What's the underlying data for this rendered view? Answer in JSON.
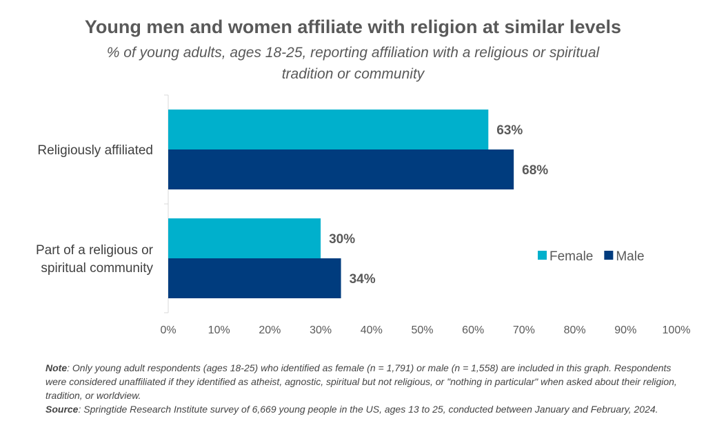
{
  "chart_data": {
    "type": "bar",
    "orientation": "horizontal",
    "title": "Young men and women affiliate with religion at similar levels",
    "subtitle": "% of young adults, ages 18-25, reporting affiliation with a religious or spiritual tradition or community",
    "categories": [
      [
        "Religiously affiliated"
      ],
      [
        "Part of a religious or",
        "spiritual community"
      ]
    ],
    "series": [
      {
        "name": "Female",
        "color": "#00B0CC",
        "values": [
          63,
          30
        ],
        "labels": [
          "63%",
          "30%"
        ]
      },
      {
        "name": "Male",
        "color": "#003C7E",
        "values": [
          68,
          34
        ],
        "labels": [
          "68%",
          "34%"
        ]
      }
    ],
    "xlim": [
      0,
      100
    ],
    "x_ticks": [
      0,
      10,
      20,
      30,
      40,
      50,
      60,
      70,
      80,
      90,
      100
    ],
    "x_tick_labels": [
      "0%",
      "10%",
      "20%",
      "30%",
      "40%",
      "50%",
      "60%",
      "70%",
      "80%",
      "90%",
      "100%"
    ],
    "grid": false,
    "legend_position": "right"
  },
  "notes": {
    "note_label": "Note",
    "note_text": ": Only young adult respondents (ages 18-25) who identified as female (n = 1,791) or male (n = 1,558) are included in this graph. Respondents were considered unaffiliated if they identified as atheist, agnostic, spiritual but not religious, or \"nothing in particular\" when asked about their religion, tradition, or worldview.",
    "source_label": "Source",
    "source_text": ": Springtide Research Institute survey of 6,669 young people in the US, ages 13 to 25, conducted between January and February, 2024."
  }
}
